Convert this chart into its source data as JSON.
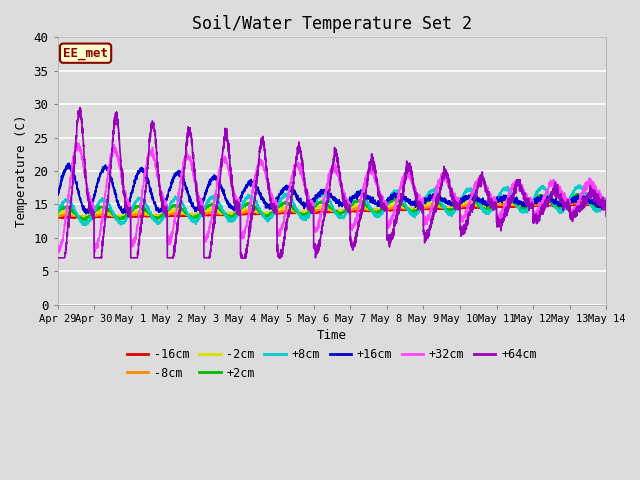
{
  "title": "Soil/Water Temperature Set 2",
  "xlabel": "Time",
  "ylabel": "Temperature (C)",
  "ylim": [
    0,
    40
  ],
  "yticks": [
    0,
    5,
    10,
    15,
    20,
    25,
    30,
    35,
    40
  ],
  "x_tick_labels": [
    "Apr 29",
    "Apr 30",
    "May 1",
    "May 2",
    "May 3",
    "May 4",
    "May 5",
    "May 6",
    "May 7",
    "May 8",
    "May 9",
    "May 10",
    "May 11",
    "May 12",
    "May 13",
    "May 14"
  ],
  "bg_color": "#dcdcdc",
  "series_colors": {
    "-16cm": "#dd0000",
    "-8cm": "#ff8800",
    "-2cm": "#dddd00",
    "+2cm": "#00bb00",
    "+8cm": "#00cccc",
    "+16cm": "#0000cc",
    "+32cm": "#ff44ff",
    "+64cm": "#9900bb"
  }
}
